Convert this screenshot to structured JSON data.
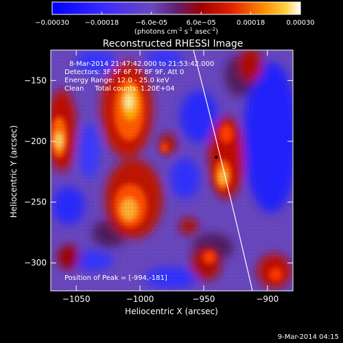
{
  "colorbar": {
    "tick_labels": [
      "-0.00030",
      "-0.00018",
      "-6.0e-05",
      "6.0e-05",
      "0.00018",
      "0.00030"
    ],
    "units_text": "(photons cm",
    "units_sup1": "-2",
    "units_mid": " s",
    "units_sup2": "-1",
    "units_end": " asec",
    "units_sup3": "-2",
    "units_close": ")",
    "range": [
      -0.0003,
      0.0003
    ]
  },
  "chart_data": {
    "type": "heatmap",
    "title": "Reconstructed RHESSI Image",
    "xlabel": "Heliocentric X (arcsec)",
    "ylabel": "Heliocentric Y (arcsec)",
    "xlim": [
      -1070,
      -880
    ],
    "ylim": [
      -323,
      -125
    ],
    "x_ticks": [
      -1050,
      -1000,
      -950,
      -900
    ],
    "y_ticks": [
      -300,
      -250,
      -200,
      -150
    ],
    "annotations": [
      "8-Mar-2014 21:47:42.000 to 21:53:42.000",
      "Detectors: 3F 5F 6F 7F 8F 9F, Att 0",
      "Energy Range: 12.0 - 25.0 keV",
      "Clean     Total counts: 1.20E+04"
    ],
    "peak_label": "Position of Peak = [-994,-181]",
    "peak_position": [
      -994,
      -181
    ],
    "grid": false,
    "colormap": "red-temperature"
  },
  "footer": {
    "timestamp": "9-Mar-2014 04:15"
  }
}
